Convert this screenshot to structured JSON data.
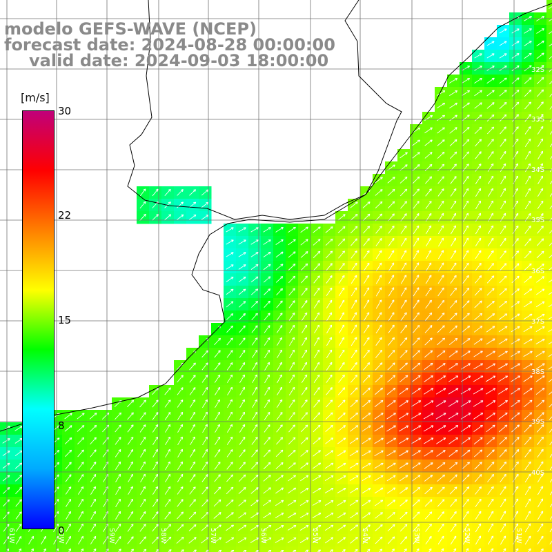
{
  "title": {
    "line1": "modelo GEFS-WAVE (NCEP)",
    "line2": "forecast date: 2024-08-28 00:00:00",
    "line3": "valid date: 2024-09-03 18:00:00"
  },
  "colorbar": {
    "unit": "[m/s]",
    "ticks": [
      "30",
      "22",
      "15",
      "8",
      "0"
    ],
    "stops": [
      "#0000ff",
      "#00aaff",
      "#00ffff",
      "#00ff00",
      "#ffff00",
      "#ff8000",
      "#ff0000",
      "#c0007a"
    ]
  },
  "map": {
    "lat_labels": [
      "32S",
      "33S",
      "34S",
      "35S",
      "36S",
      "37S",
      "38S",
      "39S",
      "40S"
    ],
    "lon_labels": [
      "61W",
      "60W",
      "59W",
      "58W",
      "57W",
      "56W",
      "55W",
      "54W",
      "53W",
      "52W",
      "51W"
    ],
    "colors": {
      "land": "#ffffff",
      "grid": "#707070",
      "coast": "#000000",
      "arrows": "#ffffff"
    }
  }
}
